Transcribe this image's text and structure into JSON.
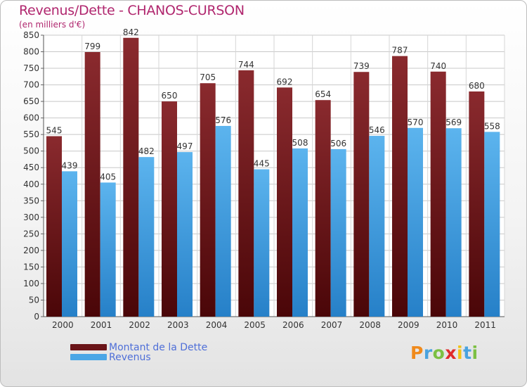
{
  "chart_data": {
    "type": "bar",
    "title": "Revenus/Dette - CHANOS-CURSON",
    "subtitle": "(en milliers d'€)",
    "categories": [
      "2000",
      "2001",
      "2002",
      "2003",
      "2004",
      "2005",
      "2006",
      "2007",
      "2008",
      "2009",
      "2010",
      "2011"
    ],
    "series": [
      {
        "name": "Montant de la Dette",
        "color": "#7a1f24",
        "values": [
          545,
          799,
          842,
          650,
          705,
          744,
          692,
          654,
          739,
          787,
          740,
          680
        ]
      },
      {
        "name": "Revenus",
        "color": "#4aa6e6",
        "values": [
          439,
          405,
          482,
          497,
          576,
          445,
          508,
          506,
          546,
          570,
          569,
          558
        ]
      }
    ],
    "ylim": [
      0,
      850
    ],
    "ytick_step": 50,
    "grid": true,
    "legend_position": "bottom-left"
  },
  "logo": {
    "letters": [
      "P",
      "r",
      "o",
      "x",
      "i",
      "t",
      "i"
    ],
    "colors": [
      "#f08a1c",
      "#4aa3df",
      "#7cc043",
      "#e02a2a",
      "#f2c314",
      "#4aa3df",
      "#7cc043"
    ]
  }
}
